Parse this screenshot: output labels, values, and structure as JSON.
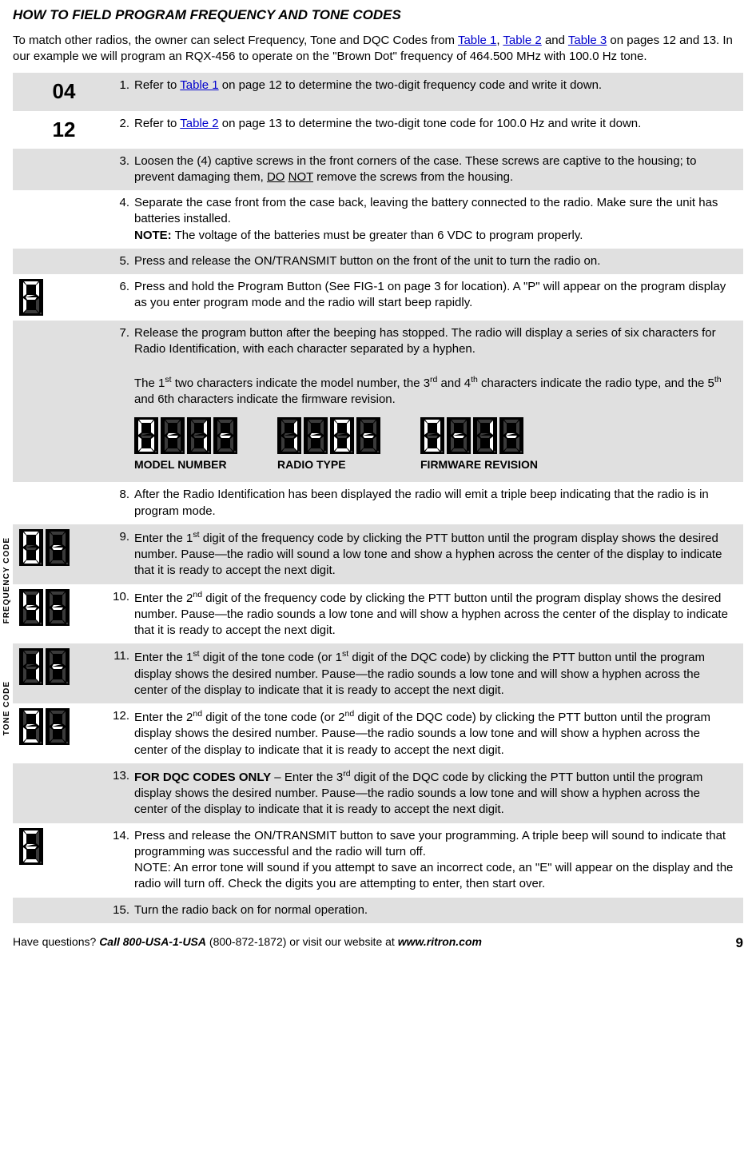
{
  "title": "HOW TO FIELD PROGRAM FREQUENCY AND TONE CODES",
  "intro": {
    "pre": "To match other radios, the owner can select Frequency, Tone and DQC Codes from ",
    "t1": "Table 1",
    "mid1": ", ",
    "t2": "Table 2",
    "mid2": " and ",
    "t3": "Table 3",
    "post": " on pages 12 and 13.  In our example we will program an RQX-456 to operate on the \"Brown Dot\" frequency of 464.500 MHz with 100.0 Hz tone."
  },
  "codes": {
    "freq": "04",
    "tone": "12"
  },
  "steps": {
    "s1": {
      "n": "1.",
      "pre": "Refer to ",
      "link": "Table 1",
      "post": " on page 12 to determine the two-digit frequency code and write it down."
    },
    "s2": {
      "n": "2.",
      "pre": "Refer to ",
      "link": "Table 2",
      "post": " on page 13 to determine the two-digit tone code for 100.0 Hz and write it down."
    },
    "s3": {
      "n": "3.",
      "pre": "Loosen the (4) captive screws in the front corners of the case.  These screws are captive to the housing; to prevent damaging them, ",
      "u1": "DO",
      "sp": " ",
      "u2": "NOT",
      "post": " remove the screws from the housing."
    },
    "s4": {
      "n": "4.",
      "a": "Separate the case front from the case back, leaving the battery connected to the radio. Make sure the unit has batteries installed.",
      "noteLabel": "NOTE:",
      "note": "  The voltage of the batteries must be greater than 6 VDC to program properly."
    },
    "s5": {
      "n": "5.",
      "t": "Press and release the ON/TRANSMIT button on the front of the unit to turn the radio on."
    },
    "s6": {
      "n": "6.",
      "t": "Press and hold the Program Button (See FIG-1 on page 3 for location).  A \"P\" will appear on the program display as you enter program mode and the radio will start beep rapidly."
    },
    "s7": {
      "n": "7.",
      "a": "Release the program button after the beeping has stopped.  The radio will display a series of six characters for Radio Identification, with each character separated by a hyphen.",
      "b_pre": "The 1",
      "b_s1": "st",
      "b_mid1": " two characters indicate the model number, the 3",
      "b_s2": "rd",
      "b_mid2": " and 4",
      "b_s3": "th",
      "b_mid3": " characters indicate the radio type, and the 5",
      "b_s4": "th",
      "b_post": " and 6th characters indicate the firmware revision.",
      "cap1": "MODEL NUMBER",
      "cap2": "RADIO TYPE",
      "cap3": "FIRMWARE REVISION"
    },
    "s8": {
      "n": "8.",
      "t": "After the Radio Identification has been displayed the radio will emit a triple beep indicating that the radio is in program mode."
    },
    "s9": {
      "n": "9.",
      "pre": "Enter the 1",
      "sup": "st",
      "post": " digit of the frequency code by clicking the PTT button until the program display shows the desired number.  Pause—the radio will sound a low tone and show a hyphen across the center of the display to indicate that it is ready to accept the next digit."
    },
    "s10": {
      "n": "10.",
      "pre": "Enter the 2",
      "sup": "nd",
      "post": " digit of the frequency code by clicking the PTT button until the program display shows the desired number.   Pause—the radio sounds a low tone and will show a hyphen across the center of the display to indicate that it is ready to accept the next digit."
    },
    "s11": {
      "n": "11.",
      "pre": "Enter the 1",
      "sup1": "st",
      "mid": " digit of the tone code (or 1",
      "sup2": "st",
      "post": " digit of the DQC code) by clicking the PTT button until the program display shows the desired number.  Pause—the radio sounds a low tone and will show a hyphen across the center of the display to indicate that it is ready to accept the next digit."
    },
    "s12": {
      "n": "12.",
      "pre": "Enter the 2",
      "sup1": "nd",
      "mid": " digit of the tone code (or 2",
      "sup2": "nd",
      "post": " digit of the DQC code) by clicking the PTT button until the program display shows the desired number.  Pause—the radio sounds a low tone and will show a hyphen across the center of the display to indicate that it is ready to accept the next digit."
    },
    "s13": {
      "n": "13.",
      "label": "FOR DQC CODES ONLY",
      "dash": " – ",
      "pre": "Enter the 3",
      "sup": "rd",
      "post": " digit of the DQC code by clicking the PTT button until the program display shows the desired number.  Pause—the radio sounds a low tone and will show a hyphen across the center of the display to indicate that it is ready to accept the next digit."
    },
    "s14": {
      "n": "14.",
      "a": "Press and release the ON/TRANSMIT button to save your programming.  A triple beep will sound to indicate that programming was successful and the radio will turn off.",
      "b": "NOTE:  An error tone will sound if you attempt to save an incorrect code, an \"E\" will appear on the display and the radio will turn off.  Check the digits you are attempting to enter, then start over."
    },
    "s15": {
      "n": "15.",
      "t": "Turn the radio back on for normal operation."
    }
  },
  "brackets": {
    "freq": "FREQUENCY CODE",
    "tone": "TONE CODE"
  },
  "footer": {
    "q": "Have questions?  ",
    "call": "Call 800-USA-1-USA",
    "num": " (800-872-1872) or visit our website at ",
    "site": "www.ritron.com",
    "page": "9"
  },
  "seg": {
    "colors": {
      "on": "#ffffff",
      "off": "#3a3a3a",
      "bg": "#000000"
    },
    "size": {
      "w": 30,
      "h": 46
    }
  }
}
